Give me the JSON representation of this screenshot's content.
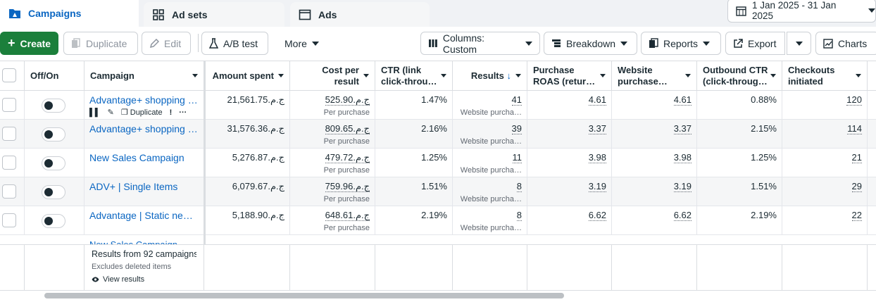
{
  "tabs": [
    {
      "label": "Campaigns",
      "icon": "folder-icon",
      "active": true
    },
    {
      "label": "Ad sets",
      "icon": "grid-icon",
      "active": false
    },
    {
      "label": "Ads",
      "icon": "ad-icon",
      "active": false
    }
  ],
  "date_range": "1 Jan 2025 - 31 Jan 2025",
  "toolbar": {
    "create": "Create",
    "duplicate": "Duplicate",
    "edit": "Edit",
    "ab_test": "A/B test",
    "more": "More",
    "columns": "Columns: Custom",
    "breakdown": "Breakdown",
    "reports": "Reports",
    "export": "Export",
    "charts": "Charts"
  },
  "headers": {
    "off_on": "Off/On",
    "campaign": "Campaign",
    "amount_spent": "Amount spent",
    "cost_per_result": "Cost per result",
    "ctr": "CTR (link click-throu…",
    "results": "Results",
    "purchase_roas": "Purchase ROAS (retur…",
    "website_purchase": "Website purchase…",
    "outbound_ctr": "Outbound CTR (click-throug…",
    "checkouts": "Checkouts initiated"
  },
  "row_actions": {
    "duplicate": "Duplicate"
  },
  "rows": [
    {
      "campaign": "Advantage+ shopping ca…",
      "spent": "21,561.75‏ج.م.‏",
      "cpr": "525.90‏ج.م.‏",
      "cpr_sub": "Per purchase",
      "ctr": "1.47%",
      "results": "41",
      "results_sub": "Website purcha…",
      "roas": "4.61",
      "web_roas": "4.61",
      "out_ctr": "0.88%",
      "checkouts": "120"
    },
    {
      "campaign": "Advantage+ shopping ca…",
      "spent": "31,576.36‏ج.م.‏",
      "cpr": "809.65‏ج.م.‏",
      "cpr_sub": "Per purchase",
      "ctr": "2.16%",
      "results": "39",
      "results_sub": "Website purcha…",
      "roas": "3.37",
      "web_roas": "3.37",
      "out_ctr": "2.15%",
      "checkouts": "114"
    },
    {
      "campaign": "New Sales Campaign",
      "spent": "5,276.87‏ج.م.‏",
      "cpr": "479.72‏ج.م.‏",
      "cpr_sub": "Per purchase",
      "ctr": "1.25%",
      "results": "11",
      "results_sub": "Website purcha…",
      "roas": "3.98",
      "web_roas": "3.98",
      "out_ctr": "1.25%",
      "checkouts": "21"
    },
    {
      "campaign": "ADV+ | Single Items",
      "spent": "6,079.67‏ج.م.‏",
      "cpr": "759.96‏ج.م.‏",
      "cpr_sub": "Per purchase",
      "ctr": "1.51%",
      "results": "8",
      "results_sub": "Website purcha…",
      "roas": "3.19",
      "web_roas": "3.19",
      "out_ctr": "1.51%",
      "checkouts": "29"
    },
    {
      "campaign": "Advantage | Static new a…",
      "spent": "5,188.90‏ج.م.‏",
      "cpr": "648.61‏ج.م.‏",
      "cpr_sub": "Per purchase",
      "ctr": "2.19%",
      "results": "8",
      "results_sub": "Website purcha…",
      "roas": "6.62",
      "web_roas": "6.62",
      "out_ctr": "2.19%",
      "checkouts": "22"
    }
  ],
  "summary": {
    "title": "Results from 92 campaigns",
    "note": "Excludes deleted items",
    "view": "View results"
  }
}
